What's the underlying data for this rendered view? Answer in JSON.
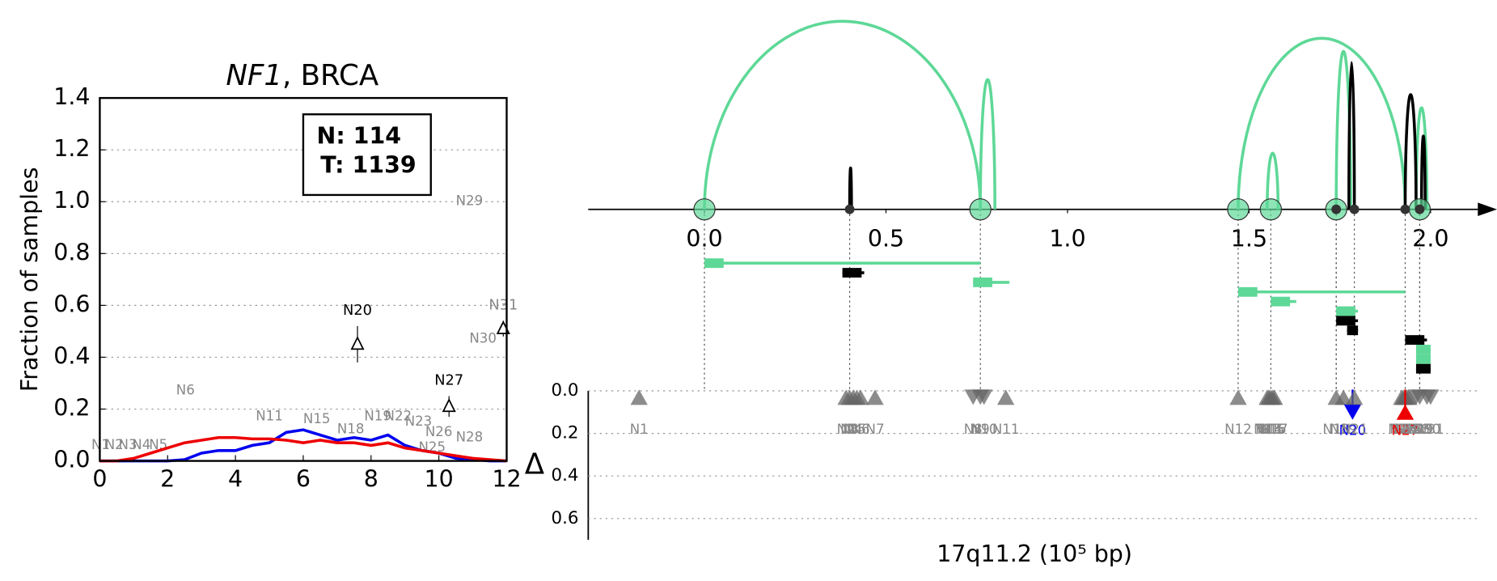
{
  "chart_data": [
    {
      "type": "line",
      "title": [
        "NF1",
        ", BRCA"
      ],
      "ylabel": "Fraction of samples",
      "legend_text": [
        "N: 114",
        "T: 1139"
      ],
      "x": [
        0,
        0.5,
        1,
        1.5,
        2,
        2.5,
        3,
        3.5,
        4,
        4.5,
        5,
        5.5,
        6,
        6.5,
        7,
        7.5,
        8,
        8.5,
        9,
        9.5,
        10,
        10.5,
        11,
        11.5,
        12
      ],
      "series": [
        {
          "color": "#0000ee",
          "values": [
            0,
            0,
            0,
            0,
            0,
            0.005,
            0.03,
            0.04,
            0.04,
            0.06,
            0.07,
            0.11,
            0.12,
            0.1,
            0.08,
            0.09,
            0.08,
            0.1,
            0.06,
            0.04,
            0.03,
            0.01,
            0.005,
            0,
            0
          ]
        },
        {
          "color": "#ee0000",
          "values": [
            0,
            0,
            0.01,
            0.03,
            0.05,
            0.07,
            0.08,
            0.09,
            0.09,
            0.085,
            0.085,
            0.08,
            0.07,
            0.08,
            0.07,
            0.07,
            0.06,
            0.07,
            0.05,
            0.04,
            0.03,
            0.02,
            0.01,
            0.005,
            0
          ]
        }
      ],
      "xlim": [
        0,
        12
      ],
      "xticks": [
        0,
        2,
        4,
        6,
        8,
        10,
        12
      ],
      "ylim": [
        0,
        1.4
      ],
      "yticks": [
        {
          "value": 0,
          "label": "0.0"
        },
        {
          "value": 0.2,
          "label": "0.2"
        },
        {
          "value": 0.4,
          "label": "0.4"
        },
        {
          "value": 0.6,
          "label": "0.6"
        },
        {
          "value": 0.8,
          "label": "0.8"
        },
        {
          "value": 1,
          "label": "1.0"
        },
        {
          "value": 1.2,
          "label": "1.2"
        },
        {
          "value": 1.4,
          "label": "1.4"
        }
      ],
      "grid": true,
      "points": [
        {
          "label": "N20",
          "x": 7.6,
          "y": 0.45,
          "err": 0.07,
          "color": "#000000"
        },
        {
          "label": "N27",
          "x": 10.3,
          "y": 0.21,
          "err": 0.04,
          "color": "#000000"
        },
        {
          "label": "N31",
          "x": 11.9,
          "y": 0.51,
          "err": 0.03,
          "color": "#888888"
        }
      ],
      "node_labels": [
        {
          "label": "N1",
          "x": 0.3,
          "y": 0.06
        },
        {
          "label": "N2",
          "x": 0.7,
          "y": 0.06
        },
        {
          "label": "N3",
          "x": 1.1,
          "y": 0.06
        },
        {
          "label": "N4",
          "x": 1.5,
          "y": 0.06
        },
        {
          "label": "N5",
          "x": 2.0,
          "y": 0.06
        },
        {
          "label": "N6",
          "x": 2.8,
          "y": 0.27
        },
        {
          "label": "N11",
          "x": 5.4,
          "y": 0.17
        },
        {
          "label": "N15",
          "x": 6.8,
          "y": 0.16
        },
        {
          "label": "N18",
          "x": 7.8,
          "y": 0.12
        },
        {
          "label": "N19",
          "x": 8.6,
          "y": 0.17
        },
        {
          "label": "N22",
          "x": 9.2,
          "y": 0.17
        },
        {
          "label": "N23",
          "x": 9.8,
          "y": 0.15
        },
        {
          "label": "N25",
          "x": 10.2,
          "y": 0.05
        },
        {
          "label": "N26",
          "x": 10.4,
          "y": 0.11
        },
        {
          "label": "N28",
          "x": 11.3,
          "y": 0.09
        },
        {
          "label": "N29",
          "x": 11.3,
          "y": 1.0
        },
        {
          "label": "N30",
          "x": 11.7,
          "y": 0.47
        }
      ]
    },
    {
      "type": "arc",
      "xlabel": "17q11.2 (10⁵ bp)",
      "xlim": [
        -0.32,
        2.13
      ],
      "xticks": [
        {
          "value": 0,
          "label": "0.0"
        },
        0.5,
        {
          "value": 1,
          "label": "1.0"
        },
        1.5,
        {
          "value": 2,
          "label": "2.0"
        }
      ],
      "arcs": [
        {
          "start": 0,
          "end": 0.76,
          "height": 1.0,
          "color": "#5ed897"
        },
        {
          "start": 0.76,
          "end": 0.8,
          "height": 0.69,
          "color": "#5ed897"
        },
        {
          "start": 1.47,
          "end": 1.93,
          "height": 0.91,
          "color": "#5ed897"
        },
        {
          "start": 1.55,
          "end": 1.58,
          "height": 0.3,
          "color": "#5ed897"
        },
        {
          "start": 1.74,
          "end": 1.78,
          "height": 0.84,
          "color": "#5ed897"
        },
        {
          "start": 1.96,
          "end": 1.99,
          "height": 0.54,
          "color": "#5ed897"
        },
        {
          "start": 0.4,
          "end": 0.405,
          "height": 0.22,
          "color": "#000000"
        },
        {
          "start": 1.775,
          "end": 1.79,
          "height": 0.78,
          "color": "#000000"
        },
        {
          "start": 1.93,
          "end": 1.96,
          "height": 0.61,
          "color": "#000000"
        },
        {
          "start": 1.975,
          "end": 1.985,
          "height": 0.39,
          "color": "#000000"
        }
      ],
      "junctions": [
        0,
        0.76,
        1.47,
        1.56,
        1.74,
        1.97
      ],
      "sites": [
        0.4,
        1.74,
        1.79,
        1.93,
        1.97
      ],
      "isoforms": [
        {
          "start": 0,
          "end": 0.76,
          "color": "#5ed897"
        },
        {
          "start": 0.38,
          "end": 0.44,
          "color": "#000000"
        },
        {
          "start": 0.74,
          "end": 0.84,
          "color": "#5ed897"
        },
        {
          "start": 1.47,
          "end": 1.93,
          "color": "#5ed897"
        },
        {
          "start": 1.56,
          "end": 1.63,
          "color": "#5ed897"
        },
        {
          "start": 1.74,
          "end": 1.8,
          "color": "#5ed897"
        },
        {
          "start": 1.74,
          "end": 1.8,
          "color": "#000000"
        },
        {
          "start": 1.77,
          "end": 1.8,
          "color": "#000000"
        },
        {
          "start": 1.93,
          "end": 1.99,
          "color": "#000000"
        },
        {
          "start": 1.96,
          "end": 2.0,
          "color": "#5ed897"
        },
        {
          "start": 1.96,
          "end": 2.0,
          "color": "#5ed897"
        },
        {
          "start": 1.96,
          "end": 2.0,
          "color": "#000000"
        }
      ],
      "delta": {
        "ylabel": "Δ",
        "ylim": [
          0,
          0.7
        ],
        "yticks": [
          {
            "value": 0,
            "label": "0.0"
          },
          {
            "value": 0.2,
            "label": "0.2"
          },
          {
            "value": 0.4,
            "label": "0.4"
          },
          {
            "value": 0.6,
            "label": "0.6"
          }
        ],
        "nodes": [
          {
            "label": "N1",
            "x": -0.18,
            "delta": 0.03,
            "color": "#666666",
            "marker": "up"
          },
          {
            "label": "N2",
            "x": 0.39,
            "delta": 0.03,
            "color": "#666666",
            "marker": "up"
          },
          {
            "label": "N3",
            "x": 0.4,
            "delta": 0.03,
            "color": "#666666",
            "marker": "up"
          },
          {
            "label": "N4",
            "x": 0.41,
            "delta": 0.03,
            "color": "#666666",
            "marker": "up"
          },
          {
            "label": "N5",
            "x": 0.42,
            "delta": 0.03,
            "color": "#666666",
            "marker": "up"
          },
          {
            "label": "N6",
            "x": 0.43,
            "delta": 0.03,
            "color": "#666666",
            "marker": "up"
          },
          {
            "label": "N7",
            "x": 0.47,
            "delta": 0.03,
            "color": "#666666",
            "marker": "up"
          },
          {
            "label": "N8",
            "x": 0.74,
            "delta": 0.03,
            "color": "#666666",
            "marker": "down"
          },
          {
            "label": "N9",
            "x": 0.76,
            "delta": 0.03,
            "color": "#666666",
            "marker": "down"
          },
          {
            "label": "N10",
            "x": 0.77,
            "delta": 0.03,
            "color": "#666666",
            "marker": "down"
          },
          {
            "label": "N11",
            "x": 0.83,
            "delta": 0.03,
            "color": "#666666",
            "marker": "up"
          },
          {
            "label": "N12",
            "x": 1.47,
            "delta": 0.03,
            "color": "#666666",
            "marker": "up"
          },
          {
            "label": "N13",
            "x": 1.55,
            "delta": 0.03,
            "color": "#666666",
            "marker": "up"
          },
          {
            "label": "N14",
            "x": 1.555,
            "delta": 0.03,
            "color": "#666666",
            "marker": "up"
          },
          {
            "label": "N15",
            "x": 1.56,
            "delta": 0.03,
            "color": "#666666",
            "marker": "up"
          },
          {
            "label": "N16",
            "x": 1.565,
            "delta": 0.03,
            "color": "#666666",
            "marker": "up"
          },
          {
            "label": "N17",
            "x": 1.57,
            "delta": 0.03,
            "color": "#666666",
            "marker": "up"
          },
          {
            "label": "N18",
            "x": 1.74,
            "delta": 0.03,
            "color": "#666666",
            "marker": "up"
          },
          {
            "label": "N19",
            "x": 1.76,
            "delta": 0.03,
            "color": "#666666",
            "marker": "up"
          },
          {
            "label": "N20",
            "x": 1.785,
            "delta": 0.1,
            "color": "#0000ee",
            "marker": "down"
          },
          {
            "label": "N21",
            "x": 1.79,
            "delta": 0.03,
            "color": "#666666",
            "marker": "up"
          },
          {
            "label": "N22",
            "x": 1.92,
            "delta": 0.03,
            "color": "#666666",
            "marker": "up"
          },
          {
            "label": "N23",
            "x": 1.925,
            "delta": 0.03,
            "color": "#666666",
            "marker": "up"
          },
          {
            "label": "N24",
            "x": 1.93,
            "delta": 0.03,
            "color": "#666666",
            "marker": "up"
          },
          {
            "label": "N25",
            "x": 1.935,
            "delta": 0.03,
            "color": "#666666",
            "marker": "up"
          },
          {
            "label": "N26",
            "x": 1.94,
            "delta": 0.03,
            "color": "#666666",
            "marker": "up"
          },
          {
            "label": "N27",
            "x": 1.93,
            "delta": 0.1,
            "color": "#ee0000",
            "marker": "up"
          },
          {
            "label": "N28",
            "x": 1.96,
            "delta": 0.03,
            "color": "#666666",
            "marker": "down"
          },
          {
            "label": "N29",
            "x": 1.97,
            "delta": 0.03,
            "color": "#666666",
            "marker": "down"
          },
          {
            "label": "N30",
            "x": 1.99,
            "delta": 0.03,
            "color": "#666666",
            "marker": "down"
          },
          {
            "label": "N31",
            "x": 2.0,
            "delta": 0.03,
            "color": "#666666",
            "marker": "down"
          }
        ]
      }
    }
  ]
}
